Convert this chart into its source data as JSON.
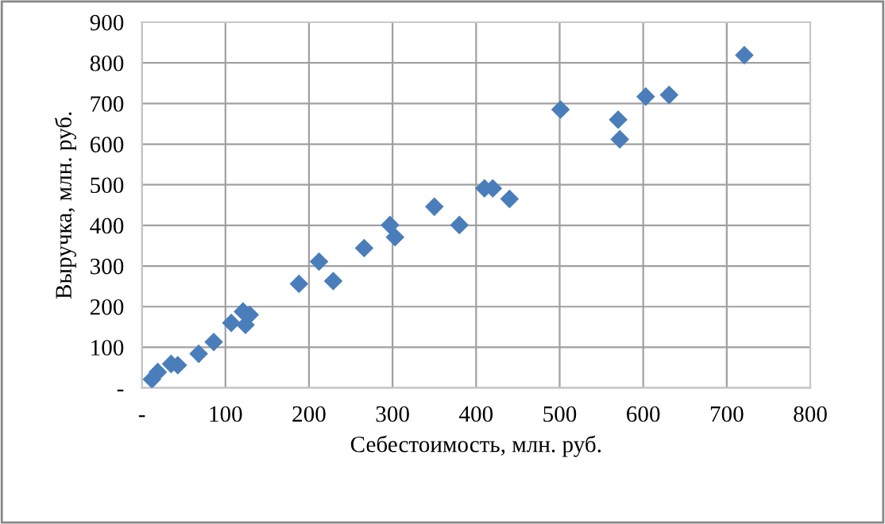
{
  "chart_data": {
    "type": "scatter",
    "xlabel": "Себестоимость, млн. руб.",
    "ylabel": "Выручка, млн. руб.",
    "series": [
      {
        "color": "#4a7ebb",
        "x": [
          12,
          19,
          35,
          43,
          68,
          86,
          107,
          121,
          129,
          124,
          188,
          212,
          229,
          266,
          297,
          303,
          350,
          380,
          410,
          420,
          440,
          501,
          570,
          572,
          603,
          631,
          721
        ],
        "values": [
          21,
          39,
          59,
          56,
          84,
          113,
          160,
          188,
          180,
          155,
          256,
          311,
          263,
          344,
          401,
          371,
          446,
          401,
          491,
          491,
          465,
          685,
          660,
          612,
          717,
          721,
          819
        ]
      }
    ],
    "marker": "diamond",
    "grid": true,
    "xlim": [
      0,
      800
    ],
    "xticks": [
      {
        "value": 0,
        "label": "-"
      },
      100,
      200,
      300,
      400,
      500,
      600,
      700,
      800
    ],
    "ylim": [
      0,
      900
    ],
    "yticks": [
      {
        "value": 0,
        "label": "-"
      },
      100,
      200,
      300,
      400,
      500,
      600,
      700,
      800,
      900
    ]
  }
}
